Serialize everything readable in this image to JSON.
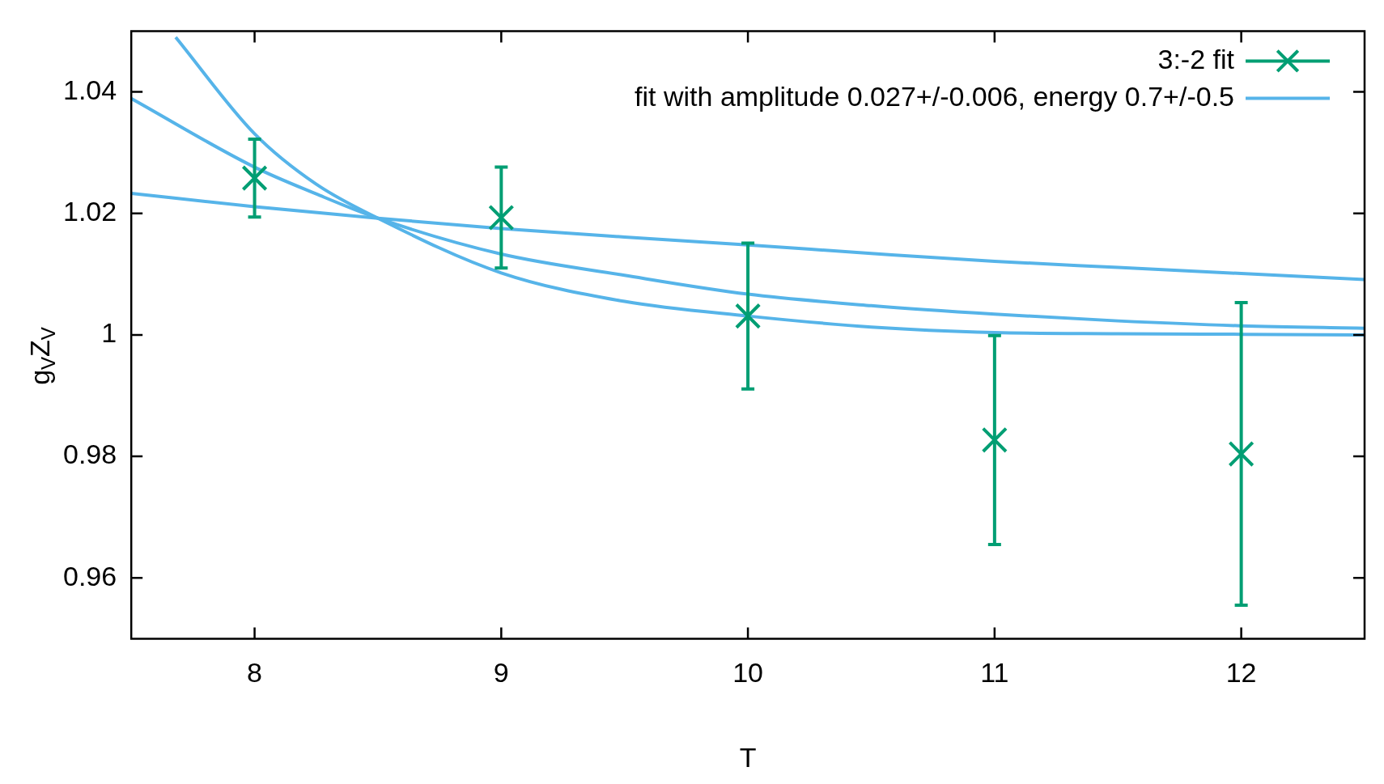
{
  "chart_data": {
    "type": "line",
    "xlabel": "T",
    "ylabel": "g$_{V}$Z$_{V}$",
    "xlim": [
      7.5,
      12.5
    ],
    "xticks": [
      8,
      9,
      10,
      11,
      12
    ],
    "ylim": [
      0.95,
      1.05
    ],
    "yticks": [
      0.96,
      0.98,
      1,
      1.02,
      1.04
    ],
    "grid": false,
    "legend": "top right",
    "series": [
      {
        "name": "3:-2 fit",
        "type": "scatter",
        "marker": "cross",
        "color": "#009e73",
        "x": [
          8,
          9,
          10,
          11,
          12
        ],
        "values": [
          1.0258,
          1.0193,
          1.0031,
          0.9827,
          0.9804
        ],
        "errors": [
          0.0064,
          0.0083,
          0.012,
          0.0172,
          0.0249
        ]
      },
      {
        "name": "fit with amplitude 0.027+/-0.006, energy 0.7+/-0.5",
        "color": "#56b4e9",
        "x": [
          7.5,
          8,
          8.25,
          8.5,
          9,
          9.5,
          10,
          10.5,
          11,
          11.5,
          12,
          12.5
        ],
        "values": [
          1.0389,
          1.0276,
          1.0232,
          1.0192,
          1.0133,
          1.0098,
          1.0067,
          1.0048,
          1.0034,
          1.0023,
          1.0015,
          1.0011
        ]
      },
      {
        "color": "#56b4e9",
        "x": [
          7.68,
          8,
          8.25,
          8.5,
          9,
          9.5,
          10,
          10.5,
          11,
          11.5,
          12,
          12.5
        ],
        "values": [
          1.049,
          1.0331,
          1.0248,
          1.0192,
          1.0102,
          1.0055,
          1.0031,
          1.0013,
          1.0004,
          1.0002,
          1.0001,
          1.0
        ]
      },
      {
        "color": "#56b4e9",
        "x": [
          7.5,
          8,
          8.5,
          9,
          9.5,
          10,
          10.5,
          11,
          11.5,
          12,
          12.5
        ],
        "values": [
          1.0233,
          1.0211,
          1.0192,
          1.0175,
          1.0161,
          1.0148,
          1.0134,
          1.0121,
          1.0111,
          1.0101,
          1.0091
        ]
      }
    ]
  }
}
